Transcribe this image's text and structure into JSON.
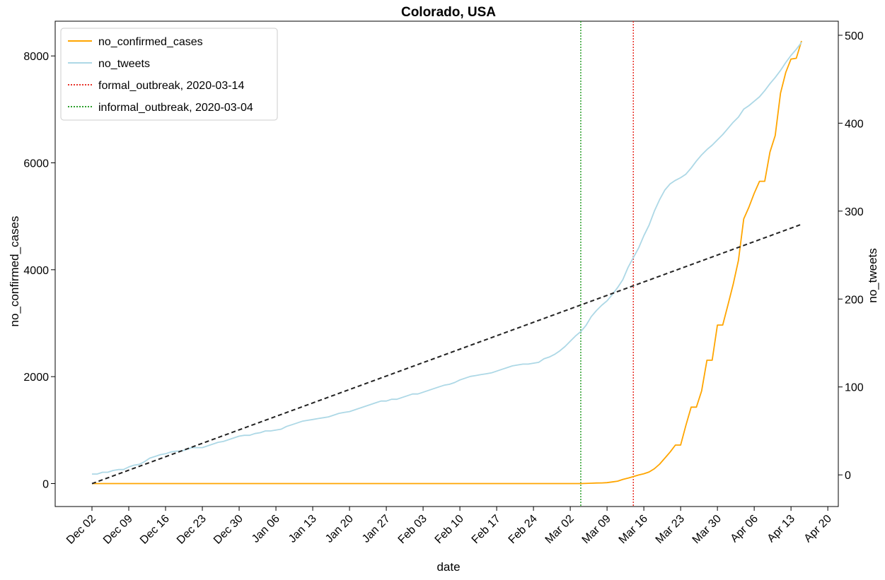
{
  "chart_data": {
    "type": "line",
    "title": "Colorado, USA",
    "xlabel": "date",
    "ylabel": "no_confirmed_cases",
    "y2label": "no_tweets",
    "x_ticks": [
      "Dec 02",
      "Dec 09",
      "Dec 16",
      "Dec 23",
      "Dec 30",
      "Jan 06",
      "Jan 13",
      "Jan 20",
      "Jan 27",
      "Feb 03",
      "Feb 10",
      "Feb 17",
      "Feb 24",
      "Mar 02",
      "Mar 09",
      "Mar 16",
      "Mar 23",
      "Mar 30",
      "Apr 06",
      "Apr 13",
      "Apr 20"
    ],
    "y_ticks": [
      "0",
      "2000",
      "4000",
      "6000",
      "8000"
    ],
    "y2_ticks": [
      "0",
      "100",
      "200",
      "300",
      "400",
      "500"
    ],
    "ylim": [
      -430,
      8650
    ],
    "y2lim": [
      -36,
      516
    ],
    "xlim": [
      "2019-11-25",
      "2020-04-22"
    ],
    "legend_position": "top-left",
    "grid": false,
    "series": [
      {
        "name": "no_confirmed_cases",
        "axis": "left",
        "color": "#ffa500",
        "points": [
          [
            "2019-12-02",
            0
          ],
          [
            "2020-03-04",
            0
          ],
          [
            "2020-03-06",
            6
          ],
          [
            "2020-03-07",
            10
          ],
          [
            "2020-03-08",
            12
          ],
          [
            "2020-03-09",
            17
          ],
          [
            "2020-03-10",
            30
          ],
          [
            "2020-03-11",
            45
          ],
          [
            "2020-03-12",
            77
          ],
          [
            "2020-03-13",
            101
          ],
          [
            "2020-03-14",
            131
          ],
          [
            "2020-03-15",
            160
          ],
          [
            "2020-03-16",
            183
          ],
          [
            "2020-03-17",
            216
          ],
          [
            "2020-03-18",
            277
          ],
          [
            "2020-03-19",
            363
          ],
          [
            "2020-03-20",
            475
          ],
          [
            "2020-03-21",
            591
          ],
          [
            "2020-03-22",
            720
          ],
          [
            "2020-03-23",
            720
          ],
          [
            "2020-03-24",
            1086
          ],
          [
            "2020-03-25",
            1430
          ],
          [
            "2020-03-26",
            1430
          ],
          [
            "2020-03-27",
            1734
          ],
          [
            "2020-03-28",
            2307
          ],
          [
            "2020-03-29",
            2307
          ],
          [
            "2020-03-30",
            2966
          ],
          [
            "2020-03-31",
            2966
          ],
          [
            "2020-04-01",
            3342
          ],
          [
            "2020-04-02",
            3728
          ],
          [
            "2020-04-03",
            4173
          ],
          [
            "2020-04-04",
            4950
          ],
          [
            "2020-04-05",
            5172
          ],
          [
            "2020-04-06",
            5429
          ],
          [
            "2020-04-07",
            5655
          ],
          [
            "2020-04-08",
            5655
          ],
          [
            "2020-04-09",
            6202
          ],
          [
            "2020-04-10",
            6510
          ],
          [
            "2020-04-11",
            7303
          ],
          [
            "2020-04-12",
            7691
          ],
          [
            "2020-04-13",
            7941
          ],
          [
            "2020-04-14",
            7956
          ],
          [
            "2020-04-15",
            8280
          ]
        ]
      },
      {
        "name": "no_tweets",
        "axis": "right",
        "color": "#add8e6",
        "points": [
          [
            "2019-12-02",
            1
          ],
          [
            "2019-12-03",
            1
          ],
          [
            "2019-12-04",
            3
          ],
          [
            "2019-12-05",
            3
          ],
          [
            "2019-12-06",
            5
          ],
          [
            "2019-12-07",
            6
          ],
          [
            "2019-12-08",
            6
          ],
          [
            "2019-12-09",
            9
          ],
          [
            "2019-12-10",
            11
          ],
          [
            "2019-12-11",
            12
          ],
          [
            "2019-12-12",
            15
          ],
          [
            "2019-12-13",
            19
          ],
          [
            "2019-12-14",
            21
          ],
          [
            "2019-12-15",
            23
          ],
          [
            "2019-12-16",
            24
          ],
          [
            "2019-12-17",
            26
          ],
          [
            "2019-12-18",
            27
          ],
          [
            "2019-12-19",
            27
          ],
          [
            "2019-12-20",
            29
          ],
          [
            "2019-12-21",
            31
          ],
          [
            "2019-12-22",
            31
          ],
          [
            "2019-12-23",
            31
          ],
          [
            "2019-12-24",
            33
          ],
          [
            "2019-12-25",
            35
          ],
          [
            "2019-12-26",
            37
          ],
          [
            "2019-12-27",
            38
          ],
          [
            "2019-12-28",
            40
          ],
          [
            "2019-12-29",
            42
          ],
          [
            "2019-12-30",
            44
          ],
          [
            "2019-12-31",
            45
          ],
          [
            "2020-01-01",
            45
          ],
          [
            "2020-01-02",
            47
          ],
          [
            "2020-01-03",
            48
          ],
          [
            "2020-01-04",
            50
          ],
          [
            "2020-01-05",
            50
          ],
          [
            "2020-01-06",
            51
          ],
          [
            "2020-01-07",
            52
          ],
          [
            "2020-01-08",
            55
          ],
          [
            "2020-01-09",
            57
          ],
          [
            "2020-01-10",
            59
          ],
          [
            "2020-01-11",
            61
          ],
          [
            "2020-01-12",
            62
          ],
          [
            "2020-01-13",
            63
          ],
          [
            "2020-01-14",
            64
          ],
          [
            "2020-01-15",
            65
          ],
          [
            "2020-01-16",
            66
          ],
          [
            "2020-01-17",
            68
          ],
          [
            "2020-01-18",
            70
          ],
          [
            "2020-01-19",
            71
          ],
          [
            "2020-01-20",
            72
          ],
          [
            "2020-01-21",
            74
          ],
          [
            "2020-01-22",
            76
          ],
          [
            "2020-01-23",
            78
          ],
          [
            "2020-01-24",
            80
          ],
          [
            "2020-01-25",
            82
          ],
          [
            "2020-01-26",
            84
          ],
          [
            "2020-01-27",
            84
          ],
          [
            "2020-01-28",
            86
          ],
          [
            "2020-01-29",
            86
          ],
          [
            "2020-01-30",
            88
          ],
          [
            "2020-01-31",
            90
          ],
          [
            "2020-02-01",
            92
          ],
          [
            "2020-02-02",
            92
          ],
          [
            "2020-02-03",
            94
          ],
          [
            "2020-02-04",
            96
          ],
          [
            "2020-02-05",
            98
          ],
          [
            "2020-02-06",
            100
          ],
          [
            "2020-02-07",
            102
          ],
          [
            "2020-02-08",
            103
          ],
          [
            "2020-02-09",
            105
          ],
          [
            "2020-02-10",
            108
          ],
          [
            "2020-02-11",
            110
          ],
          [
            "2020-02-12",
            112
          ],
          [
            "2020-02-13",
            113
          ],
          [
            "2020-02-14",
            114
          ],
          [
            "2020-02-15",
            115
          ],
          [
            "2020-02-16",
            116
          ],
          [
            "2020-02-17",
            118
          ],
          [
            "2020-02-18",
            120
          ],
          [
            "2020-02-19",
            122
          ],
          [
            "2020-02-20",
            124
          ],
          [
            "2020-02-21",
            125
          ],
          [
            "2020-02-22",
            126
          ],
          [
            "2020-02-23",
            126
          ],
          [
            "2020-02-24",
            127
          ],
          [
            "2020-02-25",
            128
          ],
          [
            "2020-02-26",
            132
          ],
          [
            "2020-02-27",
            134
          ],
          [
            "2020-02-28",
            137
          ],
          [
            "2020-02-29",
            141
          ],
          [
            "2020-03-01",
            146
          ],
          [
            "2020-03-02",
            152
          ],
          [
            "2020-03-03",
            158
          ],
          [
            "2020-03-04",
            163
          ],
          [
            "2020-03-05",
            170
          ],
          [
            "2020-03-06",
            180
          ],
          [
            "2020-03-07",
            187
          ],
          [
            "2020-03-08",
            193
          ],
          [
            "2020-03-09",
            198
          ],
          [
            "2020-03-10",
            205
          ],
          [
            "2020-03-11",
            213
          ],
          [
            "2020-03-12",
            222
          ],
          [
            "2020-03-13",
            236
          ],
          [
            "2020-03-14",
            247
          ],
          [
            "2020-03-15",
            258
          ],
          [
            "2020-03-16",
            272
          ],
          [
            "2020-03-17",
            284
          ],
          [
            "2020-03-18",
            300
          ],
          [
            "2020-03-19",
            313
          ],
          [
            "2020-03-20",
            324
          ],
          [
            "2020-03-21",
            331
          ],
          [
            "2020-03-22",
            335
          ],
          [
            "2020-03-23",
            338
          ],
          [
            "2020-03-24",
            342
          ],
          [
            "2020-03-25",
            349
          ],
          [
            "2020-03-26",
            357
          ],
          [
            "2020-03-27",
            364
          ],
          [
            "2020-03-28",
            370
          ],
          [
            "2020-03-29",
            375
          ],
          [
            "2020-03-30",
            381
          ],
          [
            "2020-03-31",
            387
          ],
          [
            "2020-04-01",
            394
          ],
          [
            "2020-04-02",
            401
          ],
          [
            "2020-04-03",
            407
          ],
          [
            "2020-04-04",
            416
          ],
          [
            "2020-04-05",
            420
          ],
          [
            "2020-04-06",
            425
          ],
          [
            "2020-04-07",
            430
          ],
          [
            "2020-04-08",
            437
          ],
          [
            "2020-04-09",
            445
          ],
          [
            "2020-04-10",
            452
          ],
          [
            "2020-04-11",
            460
          ],
          [
            "2020-04-12",
            469
          ],
          [
            "2020-04-13",
            477
          ],
          [
            "2020-04-14",
            484
          ],
          [
            "2020-04-15",
            492
          ]
        ]
      },
      {
        "name": "trend",
        "axis": "right",
        "color": "#222222",
        "style": "dashed",
        "points": [
          [
            "2019-12-02",
            -10
          ],
          [
            "2020-04-15",
            285
          ]
        ]
      }
    ],
    "vlines": [
      {
        "name": "formal_outbreak, 2020-03-14",
        "date": "2020-03-14",
        "color": "#e8332a"
      },
      {
        "name": "informal_outbreak, 2020-03-04",
        "date": "2020-03-04",
        "color": "#2ca02c"
      }
    ],
    "legend": [
      {
        "label": "no_confirmed_cases",
        "color": "#ffa500",
        "style": "solid"
      },
      {
        "label": "no_tweets",
        "color": "#add8e6",
        "style": "solid"
      },
      {
        "label": "formal_outbreak, 2020-03-14",
        "color": "#e8332a",
        "style": "dotted"
      },
      {
        "label": "informal_outbreak, 2020-03-04",
        "color": "#2ca02c",
        "style": "dotted"
      }
    ]
  }
}
